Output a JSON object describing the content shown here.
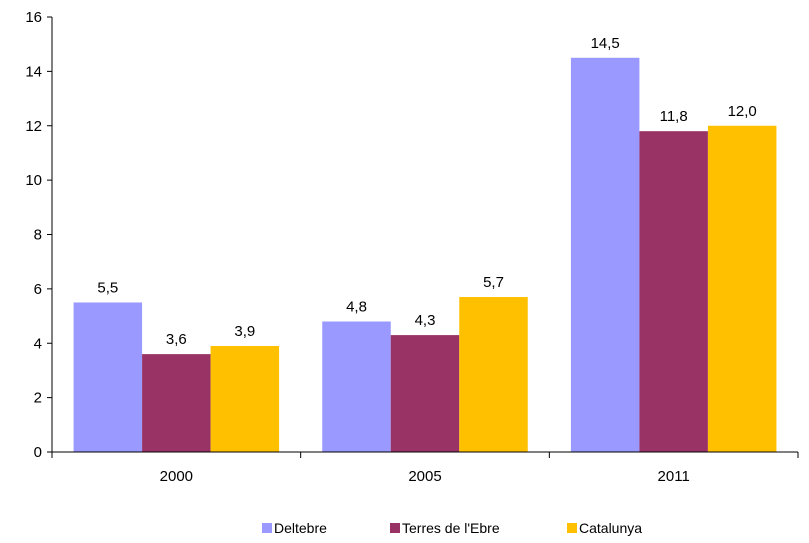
{
  "chart_data": {
    "type": "bar",
    "categories": [
      "2000",
      "2005",
      "2011"
    ],
    "series": [
      {
        "name": "Deltebre",
        "values": [
          5.5,
          4.8,
          14.5
        ],
        "labels": [
          "5,5",
          "4,8",
          "14,5"
        ],
        "color": "#9999ff"
      },
      {
        "name": "Terres de l'Ebre",
        "values": [
          3.6,
          4.3,
          11.8
        ],
        "labels": [
          "3,6",
          "4,3",
          "11,8"
        ],
        "color": "#993366"
      },
      {
        "name": "Catalunya",
        "values": [
          3.9,
          5.7,
          12.0
        ],
        "labels": [
          "3,9",
          "5,7",
          "12,0"
        ],
        "color": "#ffc000"
      }
    ],
    "ylim": [
      0,
      16
    ],
    "yticks": [
      "0",
      "2",
      "4",
      "6",
      "8",
      "10",
      "12",
      "14",
      "16"
    ],
    "grid": false,
    "legend_position": "bottom"
  }
}
